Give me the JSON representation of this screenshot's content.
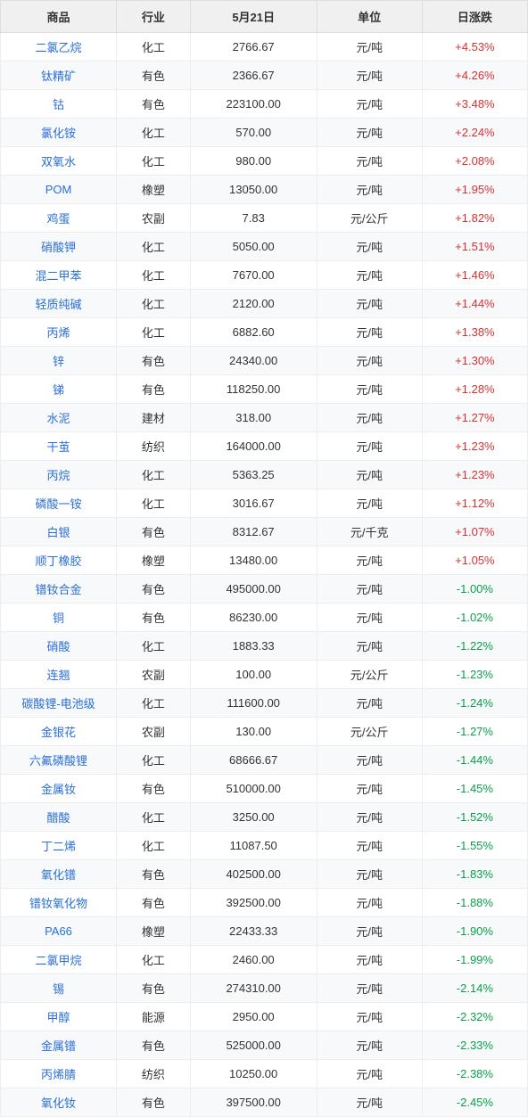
{
  "table": {
    "columns": [
      "商品",
      "行业",
      "5月21日",
      "单位",
      "日涨跌"
    ],
    "column_align": [
      "center",
      "center",
      "center",
      "center",
      "center"
    ],
    "header_bg": "#f0f0f0",
    "header_fg": "#333333",
    "row_bg_even": "#f7f9fb",
    "row_bg_odd": "#ffffff",
    "border_color": "#eeeeee",
    "link_color": "#2a6fd6",
    "pos_color": "#d93030",
    "neg_color": "#0aa04a",
    "fontsize": 13,
    "rows": [
      {
        "commodity": "二氯乙烷",
        "industry": "化工",
        "price": "2766.67",
        "unit": "元/吨",
        "change": "+4.53%",
        "dir": "pos"
      },
      {
        "commodity": "钛精矿",
        "industry": "有色",
        "price": "2366.67",
        "unit": "元/吨",
        "change": "+4.26%",
        "dir": "pos"
      },
      {
        "commodity": "钴",
        "industry": "有色",
        "price": "223100.00",
        "unit": "元/吨",
        "change": "+3.48%",
        "dir": "pos"
      },
      {
        "commodity": "氯化铵",
        "industry": "化工",
        "price": "570.00",
        "unit": "元/吨",
        "change": "+2.24%",
        "dir": "pos"
      },
      {
        "commodity": "双氧水",
        "industry": "化工",
        "price": "980.00",
        "unit": "元/吨",
        "change": "+2.08%",
        "dir": "pos"
      },
      {
        "commodity": "POM",
        "industry": "橡塑",
        "price": "13050.00",
        "unit": "元/吨",
        "change": "+1.95%",
        "dir": "pos"
      },
      {
        "commodity": "鸡蛋",
        "industry": "农副",
        "price": "7.83",
        "unit": "元/公斤",
        "change": "+1.82%",
        "dir": "pos"
      },
      {
        "commodity": "硝酸钾",
        "industry": "化工",
        "price": "5050.00",
        "unit": "元/吨",
        "change": "+1.51%",
        "dir": "pos"
      },
      {
        "commodity": "混二甲苯",
        "industry": "化工",
        "price": "7670.00",
        "unit": "元/吨",
        "change": "+1.46%",
        "dir": "pos"
      },
      {
        "commodity": "轻质纯碱",
        "industry": "化工",
        "price": "2120.00",
        "unit": "元/吨",
        "change": "+1.44%",
        "dir": "pos"
      },
      {
        "commodity": "丙烯",
        "industry": "化工",
        "price": "6882.60",
        "unit": "元/吨",
        "change": "+1.38%",
        "dir": "pos"
      },
      {
        "commodity": "锌",
        "industry": "有色",
        "price": "24340.00",
        "unit": "元/吨",
        "change": "+1.30%",
        "dir": "pos"
      },
      {
        "commodity": "锑",
        "industry": "有色",
        "price": "118250.00",
        "unit": "元/吨",
        "change": "+1.28%",
        "dir": "pos"
      },
      {
        "commodity": "水泥",
        "industry": "建材",
        "price": "318.00",
        "unit": "元/吨",
        "change": "+1.27%",
        "dir": "pos"
      },
      {
        "commodity": "干茧",
        "industry": "纺织",
        "price": "164000.00",
        "unit": "元/吨",
        "change": "+1.23%",
        "dir": "pos"
      },
      {
        "commodity": "丙烷",
        "industry": "化工",
        "price": "5363.25",
        "unit": "元/吨",
        "change": "+1.23%",
        "dir": "pos"
      },
      {
        "commodity": "磷酸一铵",
        "industry": "化工",
        "price": "3016.67",
        "unit": "元/吨",
        "change": "+1.12%",
        "dir": "pos"
      },
      {
        "commodity": "白银",
        "industry": "有色",
        "price": "8312.67",
        "unit": "元/千克",
        "change": "+1.07%",
        "dir": "pos"
      },
      {
        "commodity": "顺丁橡胶",
        "industry": "橡塑",
        "price": "13480.00",
        "unit": "元/吨",
        "change": "+1.05%",
        "dir": "pos"
      },
      {
        "commodity": "镨钕合金",
        "industry": "有色",
        "price": "495000.00",
        "unit": "元/吨",
        "change": "-1.00%",
        "dir": "neg"
      },
      {
        "commodity": "铜",
        "industry": "有色",
        "price": "86230.00",
        "unit": "元/吨",
        "change": "-1.02%",
        "dir": "neg"
      },
      {
        "commodity": "硝酸",
        "industry": "化工",
        "price": "1883.33",
        "unit": "元/吨",
        "change": "-1.22%",
        "dir": "neg"
      },
      {
        "commodity": "连翘",
        "industry": "农副",
        "price": "100.00",
        "unit": "元/公斤",
        "change": "-1.23%",
        "dir": "neg"
      },
      {
        "commodity": "碳酸锂-电池级",
        "industry": "化工",
        "price": "111600.00",
        "unit": "元/吨",
        "change": "-1.24%",
        "dir": "neg"
      },
      {
        "commodity": "金银花",
        "industry": "农副",
        "price": "130.00",
        "unit": "元/公斤",
        "change": "-1.27%",
        "dir": "neg"
      },
      {
        "commodity": "六氟磷酸锂",
        "industry": "化工",
        "price": "68666.67",
        "unit": "元/吨",
        "change": "-1.44%",
        "dir": "neg"
      },
      {
        "commodity": "金属钕",
        "industry": "有色",
        "price": "510000.00",
        "unit": "元/吨",
        "change": "-1.45%",
        "dir": "neg"
      },
      {
        "commodity": "醋酸",
        "industry": "化工",
        "price": "3250.00",
        "unit": "元/吨",
        "change": "-1.52%",
        "dir": "neg"
      },
      {
        "commodity": "丁二烯",
        "industry": "化工",
        "price": "11087.50",
        "unit": "元/吨",
        "change": "-1.55%",
        "dir": "neg"
      },
      {
        "commodity": "氧化镨",
        "industry": "有色",
        "price": "402500.00",
        "unit": "元/吨",
        "change": "-1.83%",
        "dir": "neg"
      },
      {
        "commodity": "镨钕氧化物",
        "industry": "有色",
        "price": "392500.00",
        "unit": "元/吨",
        "change": "-1.88%",
        "dir": "neg"
      },
      {
        "commodity": "PA66",
        "industry": "橡塑",
        "price": "22433.33",
        "unit": "元/吨",
        "change": "-1.90%",
        "dir": "neg"
      },
      {
        "commodity": "二氯甲烷",
        "industry": "化工",
        "price": "2460.00",
        "unit": "元/吨",
        "change": "-1.99%",
        "dir": "neg"
      },
      {
        "commodity": "锡",
        "industry": "有色",
        "price": "274310.00",
        "unit": "元/吨",
        "change": "-2.14%",
        "dir": "neg"
      },
      {
        "commodity": "甲醇",
        "industry": "能源",
        "price": "2950.00",
        "unit": "元/吨",
        "change": "-2.32%",
        "dir": "neg"
      },
      {
        "commodity": "金属镨",
        "industry": "有色",
        "price": "525000.00",
        "unit": "元/吨",
        "change": "-2.33%",
        "dir": "neg"
      },
      {
        "commodity": "丙烯腈",
        "industry": "纺织",
        "price": "10250.00",
        "unit": "元/吨",
        "change": "-2.38%",
        "dir": "neg"
      },
      {
        "commodity": "氧化钕",
        "industry": "有色",
        "price": "397500.00",
        "unit": "元/吨",
        "change": "-2.45%",
        "dir": "neg"
      }
    ]
  }
}
